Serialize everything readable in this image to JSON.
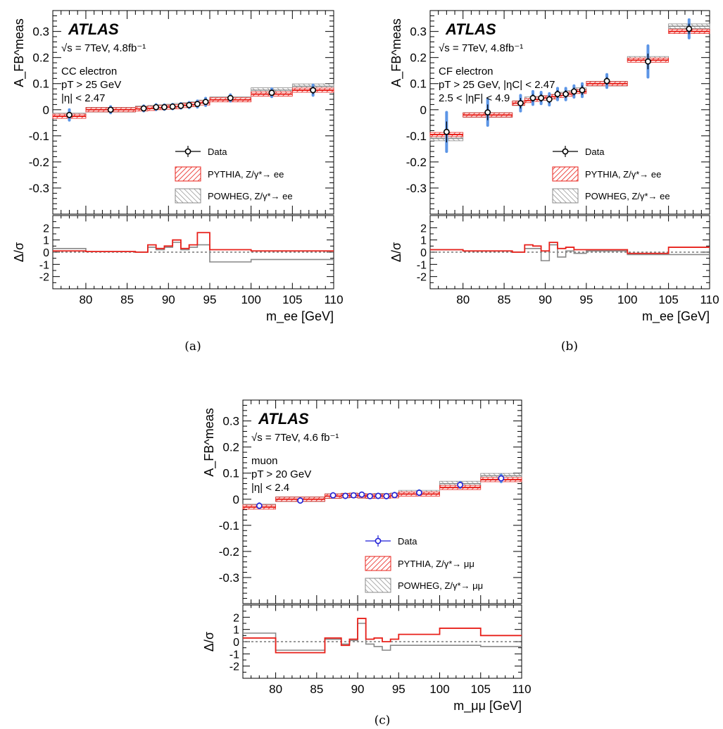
{
  "chart_data": [
    {
      "panel": "(a)",
      "type": "line",
      "atlas_label": "ATLAS",
      "energy_label": "√s = 7TeV, 4.8fb⁻¹",
      "selection_lines": [
        "CC electron",
        "pT > 25 GeV",
        "|η| < 2.47"
      ],
      "ylabel_main": "A_FB^meas",
      "ylabel_ratio": "Δ/σ",
      "xlabel": "m_ee [GeV]",
      "caption": "(a)",
      "xlim": [
        76,
        110
      ],
      "ylim_main": [
        -0.4,
        0.38
      ],
      "ylim_ratio": [
        -3,
        3
      ],
      "xticks": [
        80,
        85,
        90,
        95,
        100,
        105,
        110
      ],
      "yticks_main": [
        -0.3,
        -0.2,
        -0.1,
        0,
        0.1,
        0.2,
        0.3
      ],
      "yticks_ratio": [
        -2,
        -1,
        0,
        1,
        2
      ],
      "legend_entries": [
        "Data",
        "PYTHIA, Z/γ*→ ee",
        "POWHEG, Z/γ*→ ee"
      ],
      "data_marker_color": "#000000",
      "bins": [
        76,
        80,
        86,
        87.5,
        88.5,
        89.5,
        90.5,
        91.5,
        92.5,
        93.5,
        95,
        100,
        105,
        110
      ],
      "data_x": [
        78,
        83,
        87,
        88.5,
        89.5,
        90.5,
        91.5,
        92.5,
        93.5,
        94.5,
        97.5,
        102.5,
        107.5
      ],
      "data_y": [
        -0.02,
        0.0,
        0.005,
        0.01,
        0.01,
        0.012,
        0.015,
        0.018,
        0.022,
        0.03,
        0.045,
        0.065,
        0.075
      ],
      "data_stat": [
        0.01,
        0.008,
        0.008,
        0.008,
        0.007,
        0.007,
        0.007,
        0.008,
        0.008,
        0.01,
        0.01,
        0.012,
        0.015
      ],
      "data_syst": [
        0.02,
        0.012,
        0.01,
        0.01,
        0.009,
        0.009,
        0.009,
        0.01,
        0.012,
        0.014,
        0.012,
        0.015,
        0.02
      ],
      "pythia": [
        -0.025,
        0.0,
        0.003,
        0.005,
        0.008,
        0.01,
        0.012,
        0.016,
        0.02,
        0.026,
        0.038,
        0.06,
        0.075
      ],
      "powheg": [
        -0.022,
        0.0,
        0.005,
        0.008,
        0.01,
        0.012,
        0.015,
        0.018,
        0.022,
        0.028,
        0.04,
        0.075,
        0.09
      ],
      "ratio_pythia": [
        0.1,
        0.05,
        0.0,
        0.6,
        0.3,
        0.5,
        1.0,
        0.3,
        0.6,
        1.6,
        0.2,
        0.1,
        0.1
      ],
      "ratio_powheg": [
        0.3,
        0.05,
        0.0,
        0.4,
        0.2,
        0.4,
        0.8,
        0.2,
        0.4,
        0.6,
        -0.8,
        -0.6,
        -0.6
      ]
    },
    {
      "panel": "(b)",
      "type": "line",
      "atlas_label": "ATLAS",
      "energy_label": "√s = 7TeV, 4.8fb⁻¹",
      "selection_lines": [
        "CF electron",
        "pT > 25 GeV, |ηC| < 2.47",
        "2.5 < |ηF| < 4.9"
      ],
      "ylabel_main": "A_FB^meas",
      "ylabel_ratio": "Δ/σ",
      "xlabel": "m_ee [GeV]",
      "caption": "(b)",
      "xlim": [
        76,
        110
      ],
      "ylim_main": [
        -0.4,
        0.38
      ],
      "ylim_ratio": [
        -3,
        3
      ],
      "xticks": [
        80,
        85,
        90,
        95,
        100,
        105,
        110
      ],
      "yticks_main": [
        -0.3,
        -0.2,
        -0.1,
        0,
        0.1,
        0.2,
        0.3
      ],
      "yticks_ratio": [
        -2,
        -1,
        0,
        1,
        2
      ],
      "legend_entries": [
        "Data",
        "PYTHIA, Z/γ*→ ee",
        "POWHEG, Z/γ*→ ee"
      ],
      "data_marker_color": "#000000",
      "bins": [
        76,
        80,
        86,
        87.5,
        88.5,
        89.5,
        90.5,
        91.5,
        92.5,
        93.5,
        95,
        100,
        105,
        110
      ],
      "data_x": [
        78,
        83,
        87,
        88.5,
        89.5,
        90.5,
        91.5,
        92.5,
        93.5,
        94.5,
        97.5,
        102.5,
        107.5
      ],
      "data_y": [
        -0.085,
        -0.01,
        0.025,
        0.045,
        0.045,
        0.04,
        0.06,
        0.06,
        0.07,
        0.075,
        0.11,
        0.185,
        0.31
      ],
      "data_stat": [
        0.04,
        0.03,
        0.02,
        0.015,
        0.015,
        0.015,
        0.015,
        0.015,
        0.015,
        0.018,
        0.015,
        0.03,
        0.02
      ],
      "data_syst": [
        0.075,
        0.05,
        0.03,
        0.025,
        0.022,
        0.022,
        0.022,
        0.022,
        0.022,
        0.025,
        0.025,
        0.06,
        0.035
      ],
      "pythia": [
        -0.095,
        -0.02,
        0.025,
        0.035,
        0.04,
        0.045,
        0.05,
        0.055,
        0.06,
        0.07,
        0.1,
        0.19,
        0.3
      ],
      "powheg": [
        -0.11,
        -0.02,
        0.025,
        0.04,
        0.042,
        0.045,
        0.05,
        0.058,
        0.065,
        0.075,
        0.1,
        0.195,
        0.32
      ],
      "ratio_pythia": [
        0.2,
        0.1,
        0.0,
        0.6,
        0.5,
        0.1,
        0.8,
        0.3,
        0.4,
        0.2,
        0.2,
        -0.1,
        0.4
      ],
      "ratio_powheg": [
        0.2,
        0.1,
        0.0,
        0.3,
        0.3,
        -0.7,
        0.6,
        -0.4,
        0.1,
        -0.1,
        0.1,
        -0.2,
        -0.2
      ]
    },
    {
      "panel": "(c)",
      "type": "line",
      "atlas_label": "ATLAS",
      "energy_label": "√s = 7TeV, 4.6 fb⁻¹",
      "selection_lines": [
        "muon",
        "pT > 20 GeV",
        "|η| < 2.4"
      ],
      "ylabel_main": "A_FB^meas",
      "ylabel_ratio": "Δ/σ",
      "xlabel": "m_μμ [GeV]",
      "caption": "(c)",
      "xlim": [
        76,
        110
      ],
      "ylim_main": [
        -0.4,
        0.38
      ],
      "ylim_ratio": [
        -3,
        3
      ],
      "xticks": [
        80,
        85,
        90,
        95,
        100,
        105,
        110
      ],
      "yticks_main": [
        -0.3,
        -0.2,
        -0.1,
        0,
        0.1,
        0.2,
        0.3
      ],
      "yticks_ratio": [
        -2,
        -1,
        0,
        1,
        2
      ],
      "legend_entries": [
        "Data",
        "PYTHIA, Z/γ*→ μμ",
        "POWHEG, Z/γ*→ μμ"
      ],
      "data_marker_color": "#1f1fd6",
      "bins": [
        76,
        80,
        86,
        88,
        89,
        90,
        91,
        92,
        93,
        94,
        95,
        100,
        105,
        110
      ],
      "data_x": [
        78,
        83,
        87,
        88.5,
        89.5,
        90.5,
        91.5,
        92.5,
        93.5,
        94.5,
        97.5,
        102.5,
        107.5
      ],
      "data_y": [
        -0.025,
        -0.005,
        0.015,
        0.013,
        0.015,
        0.018,
        0.012,
        0.013,
        0.012,
        0.016,
        0.025,
        0.055,
        0.08
      ],
      "data_stat": [
        0.006,
        0.005,
        0.005,
        0.005,
        0.004,
        0.004,
        0.004,
        0.005,
        0.005,
        0.005,
        0.006,
        0.008,
        0.01
      ],
      "data_syst": [
        0.008,
        0.007,
        0.007,
        0.007,
        0.006,
        0.006,
        0.006,
        0.007,
        0.007,
        0.007,
        0.008,
        0.01,
        0.013
      ],
      "pythia": [
        -0.03,
        0.0,
        0.012,
        0.014,
        0.015,
        0.013,
        0.012,
        0.012,
        0.012,
        0.013,
        0.02,
        0.045,
        0.075
      ],
      "powheg": [
        -0.028,
        0.0,
        0.012,
        0.014,
        0.015,
        0.013,
        0.012,
        0.013,
        0.013,
        0.015,
        0.025,
        0.06,
        0.09
      ],
      "ratio_pythia": [
        0.3,
        -0.9,
        0.3,
        -0.3,
        0.2,
        1.9,
        0.2,
        0.3,
        0.0,
        0.2,
        0.6,
        1.1,
        0.5
      ],
      "ratio_powheg": [
        0.7,
        -0.7,
        0.2,
        -0.2,
        0.1,
        1.5,
        -0.2,
        -0.4,
        -0.7,
        -0.3,
        -0.3,
        -0.3,
        -0.4
      ]
    }
  ],
  "colors": {
    "pythia": "#e8201a",
    "powheg": "#888888",
    "syst_band": "#5c95e6",
    "data_black": "#000000",
    "data_blue": "#1f1fd6"
  }
}
